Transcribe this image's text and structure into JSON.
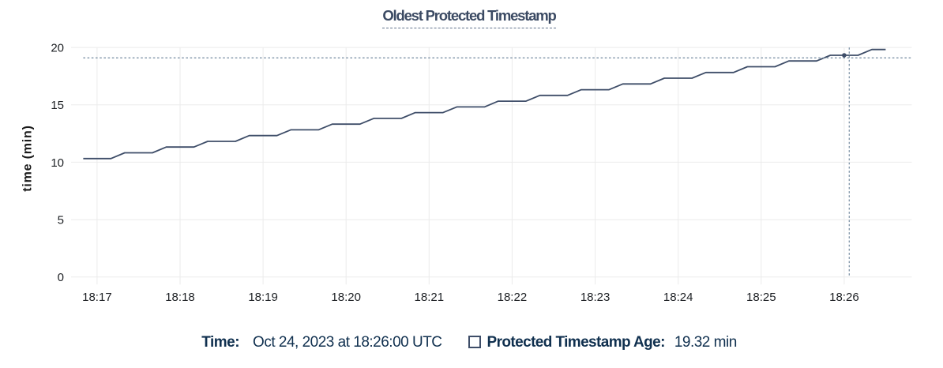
{
  "title": "Oldest Protected Timestamp",
  "chart_data": {
    "type": "line",
    "title": "Oldest Protected Timestamp",
    "xlabel": "",
    "ylabel": "time (min)",
    "ylim": [
      0,
      20
    ],
    "y_ticks": [
      0,
      5,
      10,
      15,
      20
    ],
    "x_ticks": [
      "18:17",
      "18:18",
      "18:19",
      "18:20",
      "18:21",
      "18:22",
      "18:23",
      "18:24",
      "18:25",
      "18:26"
    ],
    "grid": true,
    "x_start_time": "18:16:50",
    "x_interval_seconds": 10,
    "series": [
      {
        "name": "Protected Timestamp Age",
        "unit": "min",
        "color": "#3e4d68",
        "values": [
          10.32,
          10.32,
          10.32,
          10.82,
          10.82,
          10.82,
          11.32,
          11.32,
          11.32,
          11.82,
          11.82,
          11.82,
          12.32,
          12.32,
          12.32,
          12.82,
          12.82,
          12.82,
          13.32,
          13.32,
          13.32,
          13.82,
          13.82,
          13.82,
          14.32,
          14.32,
          14.32,
          14.82,
          14.82,
          14.82,
          15.32,
          15.32,
          15.32,
          15.82,
          15.82,
          15.82,
          16.32,
          16.32,
          16.32,
          16.82,
          16.82,
          16.82,
          17.32,
          17.32,
          17.32,
          17.82,
          17.82,
          17.82,
          18.32,
          18.32,
          18.32,
          18.82,
          18.82,
          18.82,
          19.32,
          19.32,
          19.32,
          19.82,
          19.82
        ]
      }
    ],
    "cursor": {
      "time": "18:26:00",
      "value": 19.32
    },
    "legend_position": "bottom"
  },
  "legend": {
    "time_label": "Time:",
    "time_value": "Oct 24, 2023 at 18:26:00 UTC",
    "series_label": "Protected Timestamp Age:",
    "series_value": "19.32 min"
  },
  "colors": {
    "series_line": "#3e4d68",
    "title_text": "#3b4a63",
    "legend_text": "#10304f",
    "axis_text": "#1d2024",
    "axis_label_text": "#1a1a1a",
    "grid_line": "#ebebeb",
    "cursor_line": "#7e93a6",
    "background": "#ffffff"
  }
}
